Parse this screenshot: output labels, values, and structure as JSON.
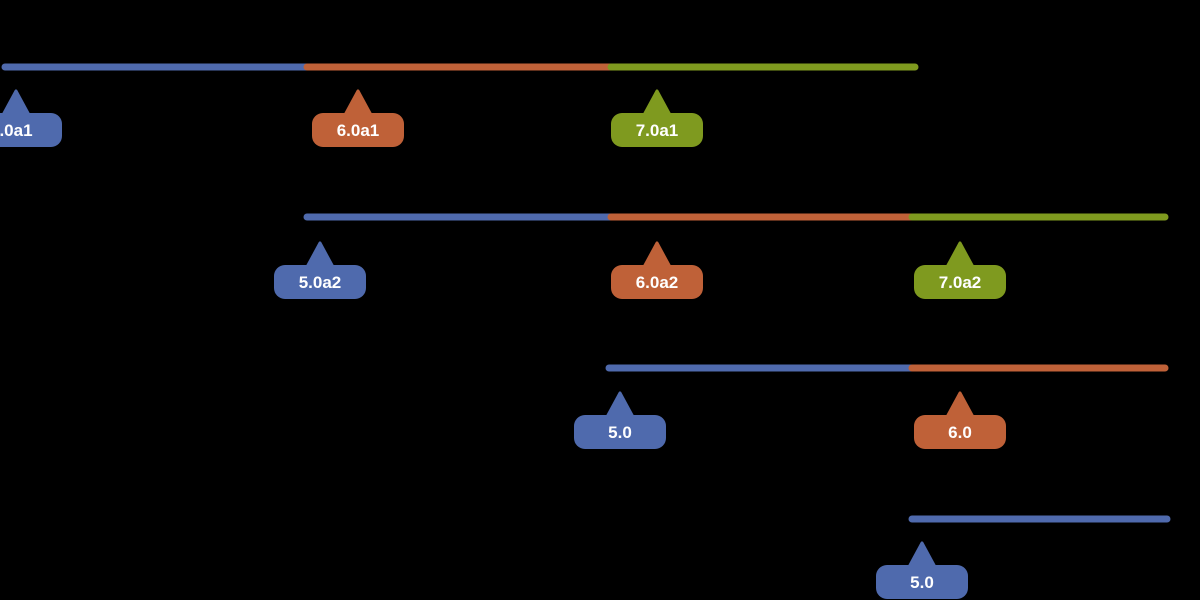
{
  "colors": {
    "background": "#000000",
    "blue": "#4f6aad",
    "orange": "#bf6138",
    "green": "#7f9a1f",
    "text": "#ffffff"
  },
  "rows": [
    {
      "segments": [
        "blue",
        "orange",
        "green"
      ],
      "tags": [
        {
          "label": ".0a1",
          "color": "blue"
        },
        {
          "label": "6.0a1",
          "color": "orange"
        },
        {
          "label": "7.0a1",
          "color": "green"
        }
      ]
    },
    {
      "segments": [
        "blue",
        "orange",
        "green"
      ],
      "tags": [
        {
          "label": "5.0a2",
          "color": "blue"
        },
        {
          "label": "6.0a2",
          "color": "orange"
        },
        {
          "label": "7.0a2",
          "color": "green"
        }
      ]
    },
    {
      "segments": [
        "blue",
        "orange"
      ],
      "tags": [
        {
          "label": "5.0",
          "color": "blue"
        },
        {
          "label": "6.0",
          "color": "orange"
        }
      ]
    },
    {
      "segments": [
        "blue"
      ],
      "tags": [
        {
          "label": "5.0",
          "color": "blue"
        }
      ]
    }
  ]
}
